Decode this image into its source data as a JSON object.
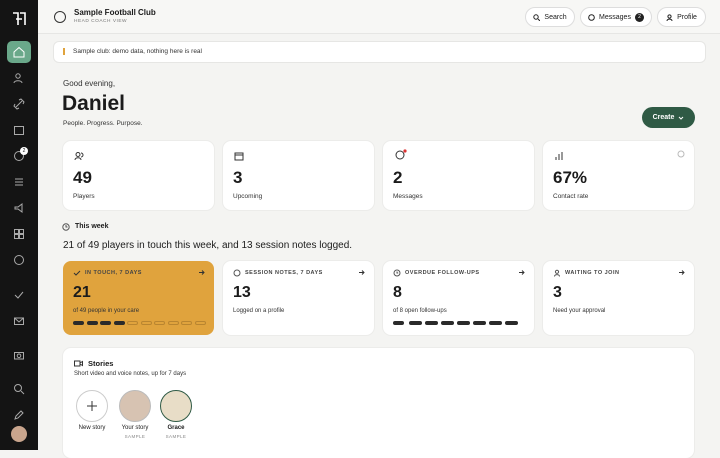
{
  "sidebar": {
    "badge": "2"
  },
  "header": {
    "club": "Sample Football Club",
    "role": "HEAD COACH VIEW",
    "buttons": {
      "search": "Search",
      "messages": "Messages",
      "messages_badge": "2",
      "profile": "Profile"
    }
  },
  "banner": "Sample club: demo data, nothing here is real",
  "greeting": {
    "salutation": "Good evening,",
    "name": "Daniel",
    "tagline": "People. Progress. Purpose.",
    "create": "Create"
  },
  "stats": [
    {
      "value": "49",
      "label": "Players"
    },
    {
      "value": "3",
      "label": "Upcoming"
    },
    {
      "value": "2",
      "label": "Messages"
    },
    {
      "value": "67%",
      "label": "Contact rate"
    }
  ],
  "this_week": {
    "heading": "This week",
    "summary": "21 of 49 players in touch this week, and 13 session notes logged.",
    "cards": [
      {
        "label": "IN TOUCH, 7 DAYS",
        "value": "21",
        "detail": "of 49 people in your care"
      },
      {
        "label": "SESSION NOTES, 7 DAYS",
        "value": "13",
        "detail": "Logged on a profile"
      },
      {
        "label": "OVERDUE FOLLOW-UPS",
        "value": "8",
        "detail": "of 8 open follow-ups"
      },
      {
        "label": "WAITING TO JOIN",
        "value": "3",
        "detail": "Need your approval"
      }
    ]
  },
  "stories": {
    "title": "Stories",
    "subtitle": "Short video and voice notes, up for 7 days",
    "items": [
      {
        "label": "New story"
      },
      {
        "label": "Your story",
        "tag": "SAMPLE"
      },
      {
        "label": "Grace",
        "tag": "SAMPLE"
      }
    ]
  }
}
